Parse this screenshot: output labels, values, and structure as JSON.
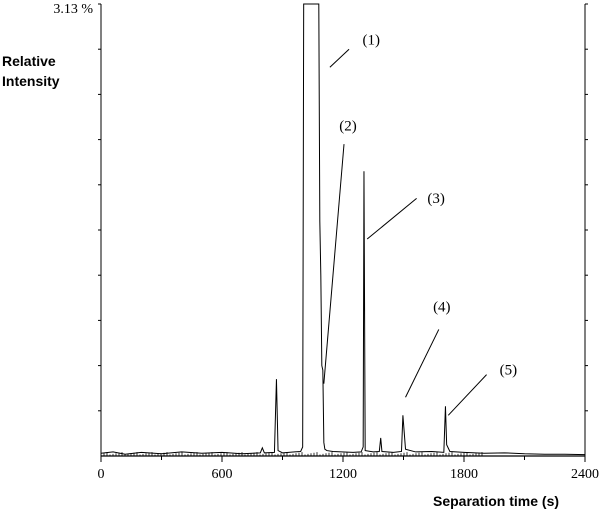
{
  "chart_data": {
    "type": "line",
    "title": "",
    "xlabel": "Separation time (s)",
    "ylabel_lines": [
      "Relative",
      "Intensity"
    ],
    "ymax_label": "3.13 %",
    "xlim": [
      0,
      2400
    ],
    "ylim": [
      0,
      100
    ],
    "x_ticks": [
      0,
      600,
      1200,
      1800,
      2400
    ],
    "x_tick_labels": [
      "0",
      "600",
      "1200",
      "1800",
      "2400"
    ],
    "y_minor_tick_count": 10,
    "series": [
      {
        "values": [
          [
            0,
            0.6
          ],
          [
            60,
            0.9
          ],
          [
            120,
            0.4
          ],
          [
            200,
            0.8
          ],
          [
            300,
            0.5
          ],
          [
            400,
            0.9
          ],
          [
            500,
            0.6
          ],
          [
            600,
            0.8
          ],
          [
            700,
            0.5
          ],
          [
            790,
            0.7
          ],
          [
            800,
            1.8
          ],
          [
            810,
            0.7
          ],
          [
            860,
            0.8
          ],
          [
            870,
            17
          ],
          [
            878,
            1.2
          ],
          [
            900,
            0.7
          ],
          [
            960,
            0.9
          ],
          [
            990,
            1.0
          ],
          [
            1000,
            2
          ],
          [
            1005,
            100
          ],
          [
            1080,
            100
          ],
          [
            1085,
            52
          ],
          [
            1090,
            40
          ],
          [
            1095,
            20
          ],
          [
            1100,
            19
          ],
          [
            1105,
            3
          ],
          [
            1110,
            1.5
          ],
          [
            1120,
            1.2
          ],
          [
            1150,
            1.0
          ],
          [
            1250,
            0.8
          ],
          [
            1290,
            0.9
          ],
          [
            1300,
            2
          ],
          [
            1304,
            63
          ],
          [
            1310,
            1.2
          ],
          [
            1350,
            0.9
          ],
          [
            1380,
            1.0
          ],
          [
            1387,
            4
          ],
          [
            1393,
            1.0
          ],
          [
            1450,
            0.8
          ],
          [
            1490,
            1.0
          ],
          [
            1497,
            9
          ],
          [
            1510,
            1.5
          ],
          [
            1560,
            0.9
          ],
          [
            1640,
            1.0
          ],
          [
            1700,
            0.8
          ],
          [
            1708,
            11
          ],
          [
            1714,
            2.5
          ],
          [
            1730,
            1.0
          ],
          [
            1800,
            0.8
          ],
          [
            1900,
            0.6
          ],
          [
            2000,
            0.7
          ],
          [
            2100,
            0.5
          ],
          [
            2200,
            0.4
          ],
          [
            2300,
            0.4
          ],
          [
            2400,
            0.3
          ]
        ]
      }
    ],
    "annotations": [
      {
        "label": "(1)",
        "line_from": [
          1135,
          86
        ],
        "line_to": [
          1230,
          90
        ],
        "text_at": [
          1340,
          91
        ]
      },
      {
        "label": "(2)",
        "line_from": [
          1105,
          16
        ],
        "line_to": [
          1205,
          69
        ],
        "text_at": [
          1225,
          72
        ]
      },
      {
        "label": "(3)",
        "line_from": [
          1320,
          48
        ],
        "line_to": [
          1565,
          57
        ],
        "text_at": [
          1662,
          56
        ]
      },
      {
        "label": "(4)",
        "line_from": [
          1510,
          13
        ],
        "line_to": [
          1675,
          28
        ],
        "text_at": [
          1690,
          32
        ]
      },
      {
        "label": "(5)",
        "line_from": [
          1722,
          9
        ],
        "line_to": [
          1912,
          18
        ],
        "text_at": [
          2020,
          18
        ]
      }
    ]
  }
}
